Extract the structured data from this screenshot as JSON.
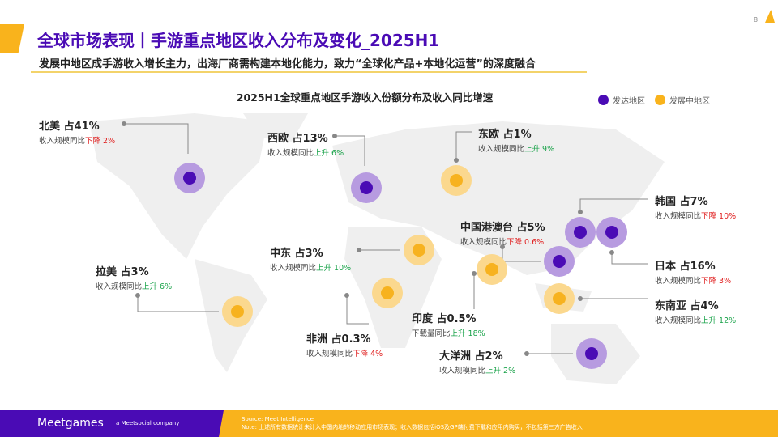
{
  "header": {
    "title": "全球市场表现丨手游重点地区收入分布及变化_2025H1",
    "subtitle": "发展中地区成手游收入增长主力，出海厂商需构建本地化能力，致力“全球化产品+本地化运营”的深度融合",
    "page_number": "8"
  },
  "chart": {
    "title": "2025H1全球重点地区手游收入份额分布及收入同比增速",
    "legend": [
      {
        "label": "发达地区",
        "color": "#4a0bb5"
      },
      {
        "label": "发展中地区",
        "color": "#f9b31c"
      }
    ],
    "colors": {
      "developed_inner": "#4a0bb5",
      "developed_outer": "#b79be0",
      "developing_inner": "#f7b21f",
      "developing_outer": "#fbd88e"
    },
    "regions": [
      {
        "name": "北美 占41%",
        "metric": "收入规模同比",
        "change": "下降 2%",
        "direction": "down",
        "type": "developed"
      },
      {
        "name": "西欧 占13%",
        "metric": "收入规模同比",
        "change": "上升 6%",
        "direction": "up",
        "type": "developed"
      },
      {
        "name": "东欧 占1%",
        "metric": "收入规模同比",
        "change": "上升 9%",
        "direction": "up",
        "type": "developing"
      },
      {
        "name": "韩国 占7%",
        "metric": "收入规模同比",
        "change": "下降 10%",
        "direction": "down",
        "type": "developed"
      },
      {
        "name": "中国港澳台 占5%",
        "metric": "收入规模同比",
        "change": "下降 0.6%",
        "direction": "down",
        "type": "developed"
      },
      {
        "name": "日本 占16%",
        "metric": "收入规模同比",
        "change": "下降 3%",
        "direction": "down",
        "type": "developed"
      },
      {
        "name": "中东 占3%",
        "metric": "收入规模同比",
        "change": "上升 10%",
        "direction": "up",
        "type": "developing"
      },
      {
        "name": "拉美 占3%",
        "metric": "收入规模同比",
        "change": "上升 6%",
        "direction": "up",
        "type": "developing"
      },
      {
        "name": "东南亚 占4%",
        "metric": "收入规模同比",
        "change": "上升 12%",
        "direction": "up",
        "type": "developing"
      },
      {
        "name": "印度 占0.5%",
        "metric": "下载量同比",
        "change": "上升 18%",
        "direction": "up",
        "type": "developing"
      },
      {
        "name": "非洲 占0.3%",
        "metric": "收入规模同比",
        "change": "下降 4%",
        "direction": "down",
        "type": "developing"
      },
      {
        "name": "大洋洲 占2%",
        "metric": "收入规模同比",
        "change": "上升 2%",
        "direction": "up",
        "type": "developed"
      }
    ]
  },
  "footer": {
    "logo": "Meetgames",
    "tagline": "a Meetsocial company",
    "source": "Source: Meet Intelligence",
    "note": "Note: 上述所有数据统计未计入中国内地的移动应用市场表现；收入数据包括iOS及GP端付费下载和应用内购买，不包括第三方广告收入"
  }
}
